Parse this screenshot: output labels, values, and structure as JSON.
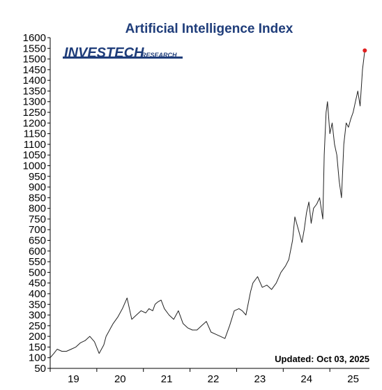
{
  "colors": {
    "title": "#1f3d7a",
    "logo": "#1f3d7a",
    "line": "#222222",
    "marker": "#e02020"
  },
  "logo": {
    "main": "INVESTECH",
    "sub": "RESEARCH"
  },
  "updated_label": "Updated: Oct 03, 2025",
  "chart_data": {
    "type": "line",
    "title": "Artificial Intelligence Index",
    "xlabel": "",
    "ylabel": "",
    "ylim": [
      50,
      1600
    ],
    "y_ticks": [
      50,
      100,
      150,
      200,
      250,
      300,
      350,
      400,
      450,
      500,
      550,
      600,
      650,
      700,
      750,
      800,
      850,
      900,
      950,
      1000,
      1050,
      1100,
      1150,
      1200,
      1250,
      1300,
      1350,
      1400,
      1450,
      1500,
      1550,
      1600
    ],
    "x_ticks": [
      {
        "label": "19",
        "year": 2019.5
      },
      {
        "label": "20",
        "year": 2020.5
      },
      {
        "label": "21",
        "year": 2021.5
      },
      {
        "label": "22",
        "year": 2022.5
      },
      {
        "label": "23",
        "year": 2023.5
      },
      {
        "label": "24",
        "year": 2024.5
      },
      {
        "label": "25",
        "year": 2025.5
      }
    ],
    "xlim": [
      2019.0,
      2025.85
    ],
    "grid": false,
    "series": [
      {
        "x": [
          2019.0,
          2019.08,
          2019.15,
          2019.25,
          2019.35,
          2019.45,
          2019.55,
          2019.65,
          2019.75,
          2019.85,
          2019.95,
          2020.05,
          2020.15,
          2020.2,
          2020.25,
          2020.3,
          2020.35,
          2020.45,
          2020.55,
          2020.65,
          2020.75,
          2020.85,
          2020.95,
          2021.05,
          2021.12,
          2021.2,
          2021.25,
          2021.3,
          2021.38,
          2021.45,
          2021.55,
          2021.65,
          2021.75,
          2021.85,
          2021.95,
          2022.05,
          2022.15,
          2022.25,
          2022.35,
          2022.45,
          2022.55,
          2022.65,
          2022.75,
          2022.85,
          2022.95,
          2023.05,
          2023.12,
          2023.2,
          2023.3,
          2023.35,
          2023.45,
          2023.55,
          2023.65,
          2023.75,
          2023.85,
          2023.95,
          2024.05,
          2024.12,
          2024.2,
          2024.25,
          2024.3,
          2024.35,
          2024.4,
          2024.45,
          2024.5,
          2024.55,
          2024.6,
          2024.65,
          2024.72,
          2024.78,
          2024.85,
          2024.88,
          2024.92,
          2024.95,
          2025.0,
          2025.05,
          2025.1,
          2025.15,
          2025.2,
          2025.25,
          2025.3,
          2025.35,
          2025.4,
          2025.45,
          2025.5,
          2025.55,
          2025.6,
          2025.65,
          2025.7,
          2025.75
        ],
        "values": [
          100,
          120,
          140,
          130,
          130,
          140,
          150,
          170,
          180,
          200,
          175,
          120,
          160,
          200,
          220,
          240,
          260,
          290,
          330,
          380,
          280,
          300,
          320,
          310,
          330,
          320,
          350,
          360,
          370,
          330,
          300,
          280,
          320,
          260,
          240,
          230,
          230,
          250,
          270,
          220,
          210,
          200,
          190,
          250,
          320,
          330,
          320,
          300,
          410,
          450,
          480,
          430,
          440,
          420,
          450,
          500,
          530,
          560,
          650,
          760,
          720,
          680,
          640,
          700,
          780,
          830,
          730,
          800,
          820,
          850,
          750,
          1050,
          1250,
          1300,
          1150,
          1200,
          1100,
          1050,
          930,
          850,
          1100,
          1200,
          1180,
          1220,
          1250,
          1300,
          1350,
          1280,
          1450,
          1540
        ]
      }
    ],
    "last_point": {
      "x": 2025.75,
      "y": 1540
    }
  }
}
